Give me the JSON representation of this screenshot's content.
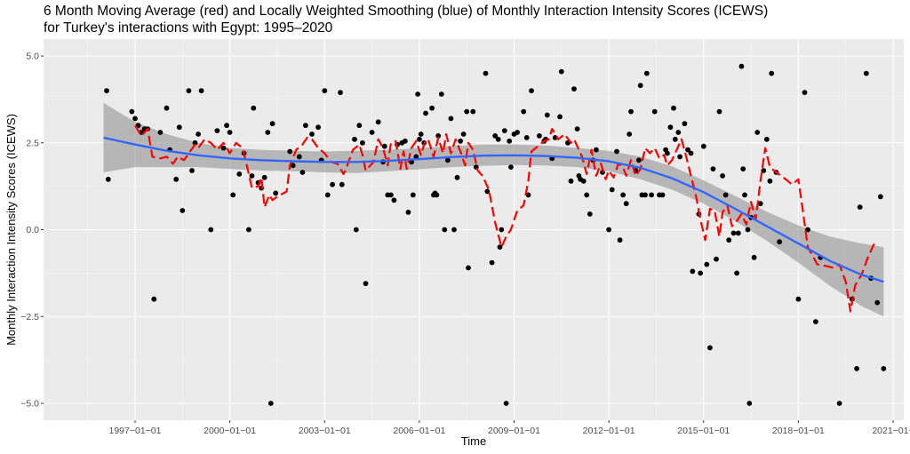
{
  "chart_data": {
    "type": "scatter",
    "title": "6 Month Moving Average (red) and Locally Weighted Smoothing (blue) of Monthly Interaction Intensity Scores (ICEWS)",
    "subtitle": "for Turkey's interactions with Egypt: 1995–2020",
    "xlabel": "Time",
    "ylabel": "Monthly Interaction Intensity Scores (ICEWS)",
    "xlim": [
      1995.0,
      2021.2
    ],
    "ylim": [
      -5.5,
      5.5
    ],
    "x_ticks": [
      1997,
      2000,
      2003,
      2006,
      2009,
      2012,
      2015,
      2018,
      2021
    ],
    "x_tick_labels": [
      "1997-01-01",
      "2000-01-01",
      "2003-01-01",
      "2006-01-01",
      "2009-01-01",
      "2012-01-01",
      "2015-01-01",
      "2018-01-01",
      "2021-01-"
    ],
    "y_ticks": [
      5.0,
      2.5,
      0.0,
      -2.5,
      -5.0
    ],
    "y_tick_labels": [
      "5.0",
      "2.5",
      "0.0",
      "-2.5",
      "-5.0"
    ],
    "grid": true,
    "legend": "none",
    "colors": {
      "points": "#000000",
      "moving_average": "#ff0000",
      "loess": "#3366ff",
      "ribbon": "#999999",
      "panel": "#ebebeb",
      "grid": "#ffffff"
    },
    "points": [
      [
        1996.1,
        4.0
      ],
      [
        1996.15,
        1.45
      ],
      [
        1996.9,
        3.4
      ],
      [
        1997.0,
        3.2
      ],
      [
        1997.1,
        3.0
      ],
      [
        1997.2,
        2.8
      ],
      [
        1997.3,
        2.9
      ],
      [
        1997.4,
        2.9
      ],
      [
        1997.6,
        -2.0
      ],
      [
        1997.8,
        2.8
      ],
      [
        1998.0,
        3.5
      ],
      [
        1998.1,
        2.3
      ],
      [
        1998.3,
        1.45
      ],
      [
        1998.4,
        2.95
      ],
      [
        1998.5,
        0.55
      ],
      [
        1998.7,
        4.0
      ],
      [
        1998.8,
        1.7
      ],
      [
        1998.9,
        2.5
      ],
      [
        1999.0,
        2.75
      ],
      [
        1999.1,
        4.0
      ],
      [
        1999.4,
        0.0
      ],
      [
        1999.6,
        2.85
      ],
      [
        1999.8,
        2.35
      ],
      [
        1999.9,
        3.0
      ],
      [
        2000.0,
        2.8
      ],
      [
        2000.1,
        1.0
      ],
      [
        2000.3,
        1.6
      ],
      [
        2000.45,
        2.2
      ],
      [
        2000.6,
        0.0
      ],
      [
        2000.7,
        1.55
      ],
      [
        2000.75,
        3.5
      ],
      [
        2000.9,
        1.35
      ],
      [
        2001.0,
        1.2
      ],
      [
        2001.1,
        1.5
      ],
      [
        2001.2,
        2.8
      ],
      [
        2001.3,
        -5.0
      ],
      [
        2001.35,
        3.05
      ],
      [
        2001.45,
        1.05
      ],
      [
        2001.9,
        2.25
      ],
      [
        2002.0,
        1.85
      ],
      [
        2002.2,
        2.1
      ],
      [
        2002.3,
        1.65
      ],
      [
        2002.4,
        3.0
      ],
      [
        2002.6,
        2.75
      ],
      [
        2002.8,
        2.95
      ],
      [
        2002.9,
        2.0
      ],
      [
        2003.0,
        4.0
      ],
      [
        2003.1,
        1.0
      ],
      [
        2003.25,
        1.3
      ],
      [
        2003.5,
        3.95
      ],
      [
        2003.55,
        1.3
      ],
      [
        2004.0,
        0.0
      ],
      [
        2003.95,
        2.6
      ],
      [
        2004.1,
        3.0
      ],
      [
        2004.2,
        2.5
      ],
      [
        2004.3,
        -1.55
      ],
      [
        2004.5,
        2.8
      ],
      [
        2004.7,
        3.1
      ],
      [
        2004.85,
        1.95
      ],
      [
        2004.9,
        2.4
      ],
      [
        2005.0,
        1.0
      ],
      [
        2005.1,
        1.0
      ],
      [
        2005.2,
        0.85
      ],
      [
        2005.3,
        2.45
      ],
      [
        2005.45,
        2.5
      ],
      [
        2005.55,
        2.55
      ],
      [
        2005.65,
        0.5
      ],
      [
        2005.75,
        1.95
      ],
      [
        2005.8,
        1.0
      ],
      [
        2005.9,
        2.1
      ],
      [
        2005.95,
        3.9
      ],
      [
        2006.0,
        2.6
      ],
      [
        2006.05,
        2.75
      ],
      [
        2006.15,
        2.5
      ],
      [
        2006.2,
        3.35
      ],
      [
        2006.4,
        3.5
      ],
      [
        2006.45,
        1.0
      ],
      [
        2006.5,
        1.05
      ],
      [
        2006.55,
        1.0
      ],
      [
        2006.6,
        2.7
      ],
      [
        2006.7,
        3.9
      ],
      [
        2006.8,
        0.0
      ],
      [
        2006.9,
        2.0
      ],
      [
        2007.0,
        3.2
      ],
      [
        2007.1,
        0.0
      ],
      [
        2007.2,
        1.5
      ],
      [
        2007.3,
        2.55
      ],
      [
        2007.4,
        2.75
      ],
      [
        2007.5,
        3.4
      ],
      [
        2007.55,
        -1.1
      ],
      [
        2007.7,
        3.4
      ],
      [
        2007.8,
        1.8
      ],
      [
        2008.1,
        4.5
      ],
      [
        2008.15,
        1.1
      ],
      [
        2008.3,
        -0.95
      ],
      [
        2008.4,
        2.7
      ],
      [
        2008.5,
        2.6
      ],
      [
        2008.55,
        -0.5
      ],
      [
        2008.6,
        0.0
      ],
      [
        2008.7,
        2.85
      ],
      [
        2008.75,
        -5.0
      ],
      [
        2008.85,
        2.55
      ],
      [
        2008.9,
        1.8
      ],
      [
        2009.0,
        2.75
      ],
      [
        2009.1,
        2.8
      ],
      [
        2009.3,
        3.4
      ],
      [
        2009.4,
        2.65
      ],
      [
        2009.45,
        1.0
      ],
      [
        2009.55,
        4.0
      ],
      [
        2009.8,
        2.7
      ],
      [
        2009.95,
        2.55
      ],
      [
        2010.0,
        2.6
      ],
      [
        2010.05,
        3.3
      ],
      [
        2010.2,
        2.05
      ],
      [
        2010.3,
        2.65
      ],
      [
        2010.45,
        3.25
      ],
      [
        2010.5,
        4.55
      ],
      [
        2010.7,
        2.5
      ],
      [
        2010.8,
        1.4
      ],
      [
        2010.9,
        4.05
      ],
      [
        2011.0,
        2.9
      ],
      [
        2011.05,
        1.55
      ],
      [
        2011.1,
        1.45
      ],
      [
        2011.2,
        1.4
      ],
      [
        2011.3,
        1.0
      ],
      [
        2011.4,
        0.45
      ],
      [
        2011.5,
        2.0
      ],
      [
        2011.6,
        2.3
      ],
      [
        2011.8,
        1.65
      ],
      [
        2012.0,
        0.0
      ],
      [
        2012.1,
        1.15
      ],
      [
        2012.25,
        2.25
      ],
      [
        2012.35,
        -0.3
      ],
      [
        2012.45,
        1.0
      ],
      [
        2012.55,
        0.75
      ],
      [
        2012.65,
        2.75
      ],
      [
        2012.7,
        3.4
      ],
      [
        2012.85,
        1.7
      ],
      [
        2012.95,
        2.0
      ],
      [
        2013.0,
        4.15
      ],
      [
        2013.05,
        1.0
      ],
      [
        2013.15,
        1.0
      ],
      [
        2013.2,
        4.5
      ],
      [
        2013.35,
        1.0
      ],
      [
        2013.45,
        3.4
      ],
      [
        2013.6,
        1.0
      ],
      [
        2013.7,
        1.0
      ],
      [
        2013.8,
        2.3
      ],
      [
        2013.85,
        2.2
      ],
      [
        2013.95,
        2.95
      ],
      [
        2014.05,
        3.5
      ],
      [
        2014.1,
        2.6
      ],
      [
        2014.2,
        2.8
      ],
      [
        2014.25,
        2.1
      ],
      [
        2014.4,
        3.05
      ],
      [
        2014.5,
        2.3
      ],
      [
        2014.6,
        2.2
      ],
      [
        2014.65,
        -1.2
      ],
      [
        2014.85,
        0.45
      ],
      [
        2014.9,
        -1.25
      ],
      [
        2015.0,
        2.4
      ],
      [
        2015.1,
        -1.0
      ],
      [
        2015.2,
        -3.4
      ],
      [
        2015.3,
        1.75
      ],
      [
        2015.4,
        -0.85
      ],
      [
        2015.5,
        3.4
      ],
      [
        2015.6,
        1.55
      ],
      [
        2015.7,
        1.0
      ],
      [
        2015.8,
        -0.3
      ],
      [
        2015.95,
        -0.1
      ],
      [
        2016.05,
        -1.25
      ],
      [
        2016.1,
        -0.1
      ],
      [
        2016.2,
        4.7
      ],
      [
        2016.25,
        1.75
      ],
      [
        2016.3,
        1.0
      ],
      [
        2016.4,
        0.0
      ],
      [
        2016.45,
        -5.0
      ],
      [
        2016.5,
        0.35
      ],
      [
        2016.6,
        -0.8
      ],
      [
        2016.7,
        2.8
      ],
      [
        2016.8,
        0.75
      ],
      [
        2016.9,
        1.7
      ],
      [
        2017.0,
        2.6
      ],
      [
        2017.1,
        1.4
      ],
      [
        2017.15,
        4.5
      ],
      [
        2017.3,
        1.65
      ],
      [
        2017.4,
        -0.35
      ],
      [
        2018.0,
        -2.0
      ],
      [
        2018.2,
        3.95
      ],
      [
        2018.3,
        0.0
      ],
      [
        2018.55,
        -2.65
      ],
      [
        2018.7,
        -0.8
      ],
      [
        2019.3,
        -5.0
      ],
      [
        2019.7,
        -2.0
      ],
      [
        2019.85,
        -4.0
      ],
      [
        2019.95,
        0.65
      ],
      [
        2020.15,
        4.5
      ],
      [
        2020.3,
        -1.4
      ],
      [
        2020.5,
        -2.1
      ],
      [
        2020.6,
        0.95
      ],
      [
        2020.7,
        -4.0
      ]
    ],
    "moving_average": [
      [
        1997.0,
        3.0
      ],
      [
        1997.2,
        2.7
      ],
      [
        1997.4,
        2.9
      ],
      [
        1997.55,
        2.1
      ],
      [
        1997.8,
        2.05
      ],
      [
        1998.0,
        2.1
      ],
      [
        1998.2,
        1.9
      ],
      [
        1998.35,
        2.1
      ],
      [
        1998.55,
        2.0
      ],
      [
        1998.7,
        2.2
      ],
      [
        1998.9,
        2.45
      ],
      [
        1999.0,
        2.35
      ],
      [
        1999.2,
        2.6
      ],
      [
        1999.4,
        2.5
      ],
      [
        1999.6,
        2.3
      ],
      [
        1999.8,
        2.5
      ],
      [
        2000.0,
        2.2
      ],
      [
        2000.2,
        2.5
      ],
      [
        2000.4,
        2.35
      ],
      [
        2000.55,
        1.8
      ],
      [
        2000.7,
        1.2
      ],
      [
        2000.9,
        1.25
      ],
      [
        2001.0,
        1.5
      ],
      [
        2001.1,
        0.65
      ],
      [
        2001.25,
        1.0
      ],
      [
        2001.35,
        0.85
      ],
      [
        2001.5,
        0.95
      ],
      [
        2001.8,
        1.1
      ],
      [
        2001.9,
        1.85
      ],
      [
        2002.1,
        2.3
      ],
      [
        2002.3,
        2.45
      ],
      [
        2002.45,
        2.65
      ],
      [
        2002.6,
        2.6
      ],
      [
        2002.8,
        2.35
      ],
      [
        2003.0,
        2.2
      ],
      [
        2003.2,
        1.95
      ],
      [
        2003.4,
        1.9
      ],
      [
        2003.6,
        1.6
      ],
      [
        2003.7,
        1.8
      ],
      [
        2003.9,
        2.3
      ],
      [
        2004.1,
        2.45
      ],
      [
        2004.2,
        2.15
      ],
      [
        2004.3,
        1.7
      ],
      [
        2004.55,
        1.95
      ],
      [
        2004.7,
        2.6
      ],
      [
        2004.85,
        2.35
      ],
      [
        2005.0,
        1.85
      ],
      [
        2005.1,
        2.5
      ],
      [
        2005.25,
        2.55
      ],
      [
        2005.4,
        1.75
      ],
      [
        2005.5,
        2.25
      ],
      [
        2005.6,
        1.75
      ],
      [
        2005.75,
        2.35
      ],
      [
        2005.9,
        2.55
      ],
      [
        2006.05,
        2.15
      ],
      [
        2006.2,
        2.6
      ],
      [
        2006.3,
        2.55
      ],
      [
        2006.45,
        2.1
      ],
      [
        2006.6,
        2.65
      ],
      [
        2006.75,
        2.2
      ],
      [
        2006.85,
        2.75
      ],
      [
        2007.0,
        2.2
      ],
      [
        2007.15,
        2.6
      ],
      [
        2007.3,
        2.25
      ],
      [
        2007.45,
        1.85
      ],
      [
        2007.55,
        2.5
      ],
      [
        2007.7,
        2.3
      ],
      [
        2007.85,
        1.7
      ],
      [
        2008.0,
        1.55
      ],
      [
        2008.2,
        1.15
      ],
      [
        2008.4,
        0.2
      ],
      [
        2008.6,
        -0.5
      ],
      [
        2008.75,
        -0.2
      ],
      [
        2008.9,
        0.0
      ],
      [
        2009.1,
        0.55
      ],
      [
        2009.3,
        0.7
      ],
      [
        2009.45,
        1.4
      ],
      [
        2009.55,
        2.25
      ],
      [
        2009.75,
        2.4
      ],
      [
        2009.95,
        2.55
      ],
      [
        2010.1,
        2.6
      ],
      [
        2010.2,
        2.9
      ],
      [
        2010.4,
        2.6
      ],
      [
        2010.6,
        2.75
      ],
      [
        2010.8,
        2.5
      ],
      [
        2010.9,
        2.6
      ],
      [
        2011.0,
        2.4
      ],
      [
        2011.15,
        2.1
      ],
      [
        2011.3,
        1.6
      ],
      [
        2011.45,
        2.3
      ],
      [
        2011.6,
        1.55
      ],
      [
        2011.75,
        1.9
      ],
      [
        2011.9,
        1.45
      ],
      [
        2012.0,
        1.7
      ],
      [
        2012.15,
        1.5
      ],
      [
        2012.3,
        1.9
      ],
      [
        2012.45,
        1.8
      ],
      [
        2012.55,
        1.55
      ],
      [
        2012.7,
        2.0
      ],
      [
        2012.85,
        1.55
      ],
      [
        2013.0,
        1.75
      ],
      [
        2013.15,
        2.35
      ],
      [
        2013.3,
        2.2
      ],
      [
        2013.45,
        2.35
      ],
      [
        2013.6,
        2.05
      ],
      [
        2013.75,
        2.15
      ],
      [
        2013.85,
        1.85
      ],
      [
        2014.0,
        2.0
      ],
      [
        2014.15,
        2.3
      ],
      [
        2014.3,
        2.6
      ],
      [
        2014.45,
        2.1
      ],
      [
        2014.6,
        1.55
      ],
      [
        2014.75,
        1.0
      ],
      [
        2014.9,
        0.3
      ],
      [
        2015.05,
        -0.3
      ],
      [
        2015.2,
        0.6
      ],
      [
        2015.35,
        0.55
      ],
      [
        2015.5,
        -0.2
      ],
      [
        2015.6,
        0.5
      ],
      [
        2015.75,
        0.7
      ],
      [
        2015.9,
        0.1
      ],
      [
        2016.05,
        0.25
      ],
      [
        2016.2,
        0.45
      ],
      [
        2016.35,
        0.15
      ],
      [
        2016.5,
        0.8
      ],
      [
        2016.65,
        0.3
      ],
      [
        2016.8,
        1.4
      ],
      [
        2016.95,
        2.35
      ],
      [
        2017.1,
        1.8
      ],
      [
        2017.3,
        1.65
      ],
      [
        2017.6,
        1.45
      ],
      [
        2017.8,
        1.3
      ],
      [
        2018.0,
        1.45
      ],
      [
        2018.15,
        0.5
      ],
      [
        2018.3,
        -0.5
      ],
      [
        2018.6,
        -1.0
      ],
      [
        2018.9,
        -1.05
      ],
      [
        2019.1,
        -1.1
      ],
      [
        2019.3,
        -1.0
      ],
      [
        2019.5,
        -1.5
      ],
      [
        2019.65,
        -2.35
      ],
      [
        2019.8,
        -1.6
      ],
      [
        2020.0,
        -1.3
      ],
      [
        2020.2,
        -0.8
      ],
      [
        2020.45,
        -0.3
      ]
    ],
    "loess": [
      [
        1996.0,
        2.65
      ],
      [
        1997.0,
        2.45
      ],
      [
        1998.0,
        2.27
      ],
      [
        1999.0,
        2.14
      ],
      [
        2000.0,
        2.05
      ],
      [
        2001.0,
        2.0
      ],
      [
        2002.0,
        1.97
      ],
      [
        2003.0,
        1.95
      ],
      [
        2004.0,
        1.95
      ],
      [
        2005.0,
        1.98
      ],
      [
        2006.0,
        2.03
      ],
      [
        2007.0,
        2.09
      ],
      [
        2008.0,
        2.13
      ],
      [
        2009.0,
        2.14
      ],
      [
        2010.0,
        2.12
      ],
      [
        2011.0,
        2.07
      ],
      [
        2012.0,
        1.97
      ],
      [
        2013.0,
        1.78
      ],
      [
        2014.0,
        1.48
      ],
      [
        2015.0,
        1.08
      ],
      [
        2016.0,
        0.6
      ],
      [
        2017.0,
        0.1
      ],
      [
        2018.0,
        -0.4
      ],
      [
        2019.0,
        -0.9
      ],
      [
        2020.0,
        -1.3
      ],
      [
        2020.7,
        -1.5
      ]
    ],
    "loess_ci": [
      [
        1996.0,
        1.65,
        3.65
      ],
      [
        1997.0,
        1.8,
        3.1
      ],
      [
        1998.0,
        1.8,
        2.75
      ],
      [
        1999.0,
        1.8,
        2.5
      ],
      [
        2000.0,
        1.75,
        2.35
      ],
      [
        2001.0,
        1.7,
        2.3
      ],
      [
        2002.0,
        1.68,
        2.27
      ],
      [
        2003.0,
        1.65,
        2.25
      ],
      [
        2004.0,
        1.63,
        2.27
      ],
      [
        2005.0,
        1.68,
        2.3
      ],
      [
        2006.0,
        1.74,
        2.35
      ],
      [
        2007.0,
        1.8,
        2.4
      ],
      [
        2008.0,
        1.84,
        2.45
      ],
      [
        2009.0,
        1.86,
        2.45
      ],
      [
        2010.0,
        1.85,
        2.42
      ],
      [
        2011.0,
        1.8,
        2.35
      ],
      [
        2012.0,
        1.68,
        2.27
      ],
      [
        2013.0,
        1.45,
        2.1
      ],
      [
        2014.0,
        1.15,
        1.82
      ],
      [
        2015.0,
        0.75,
        1.42
      ],
      [
        2016.0,
        0.25,
        0.97
      ],
      [
        2017.0,
        -0.32,
        0.52
      ],
      [
        2018.0,
        -0.95,
        0.12
      ],
      [
        2019.0,
        -1.62,
        -0.2
      ],
      [
        2020.0,
        -2.2,
        -0.4
      ],
      [
        2020.7,
        -2.5,
        -0.5
      ]
    ]
  }
}
